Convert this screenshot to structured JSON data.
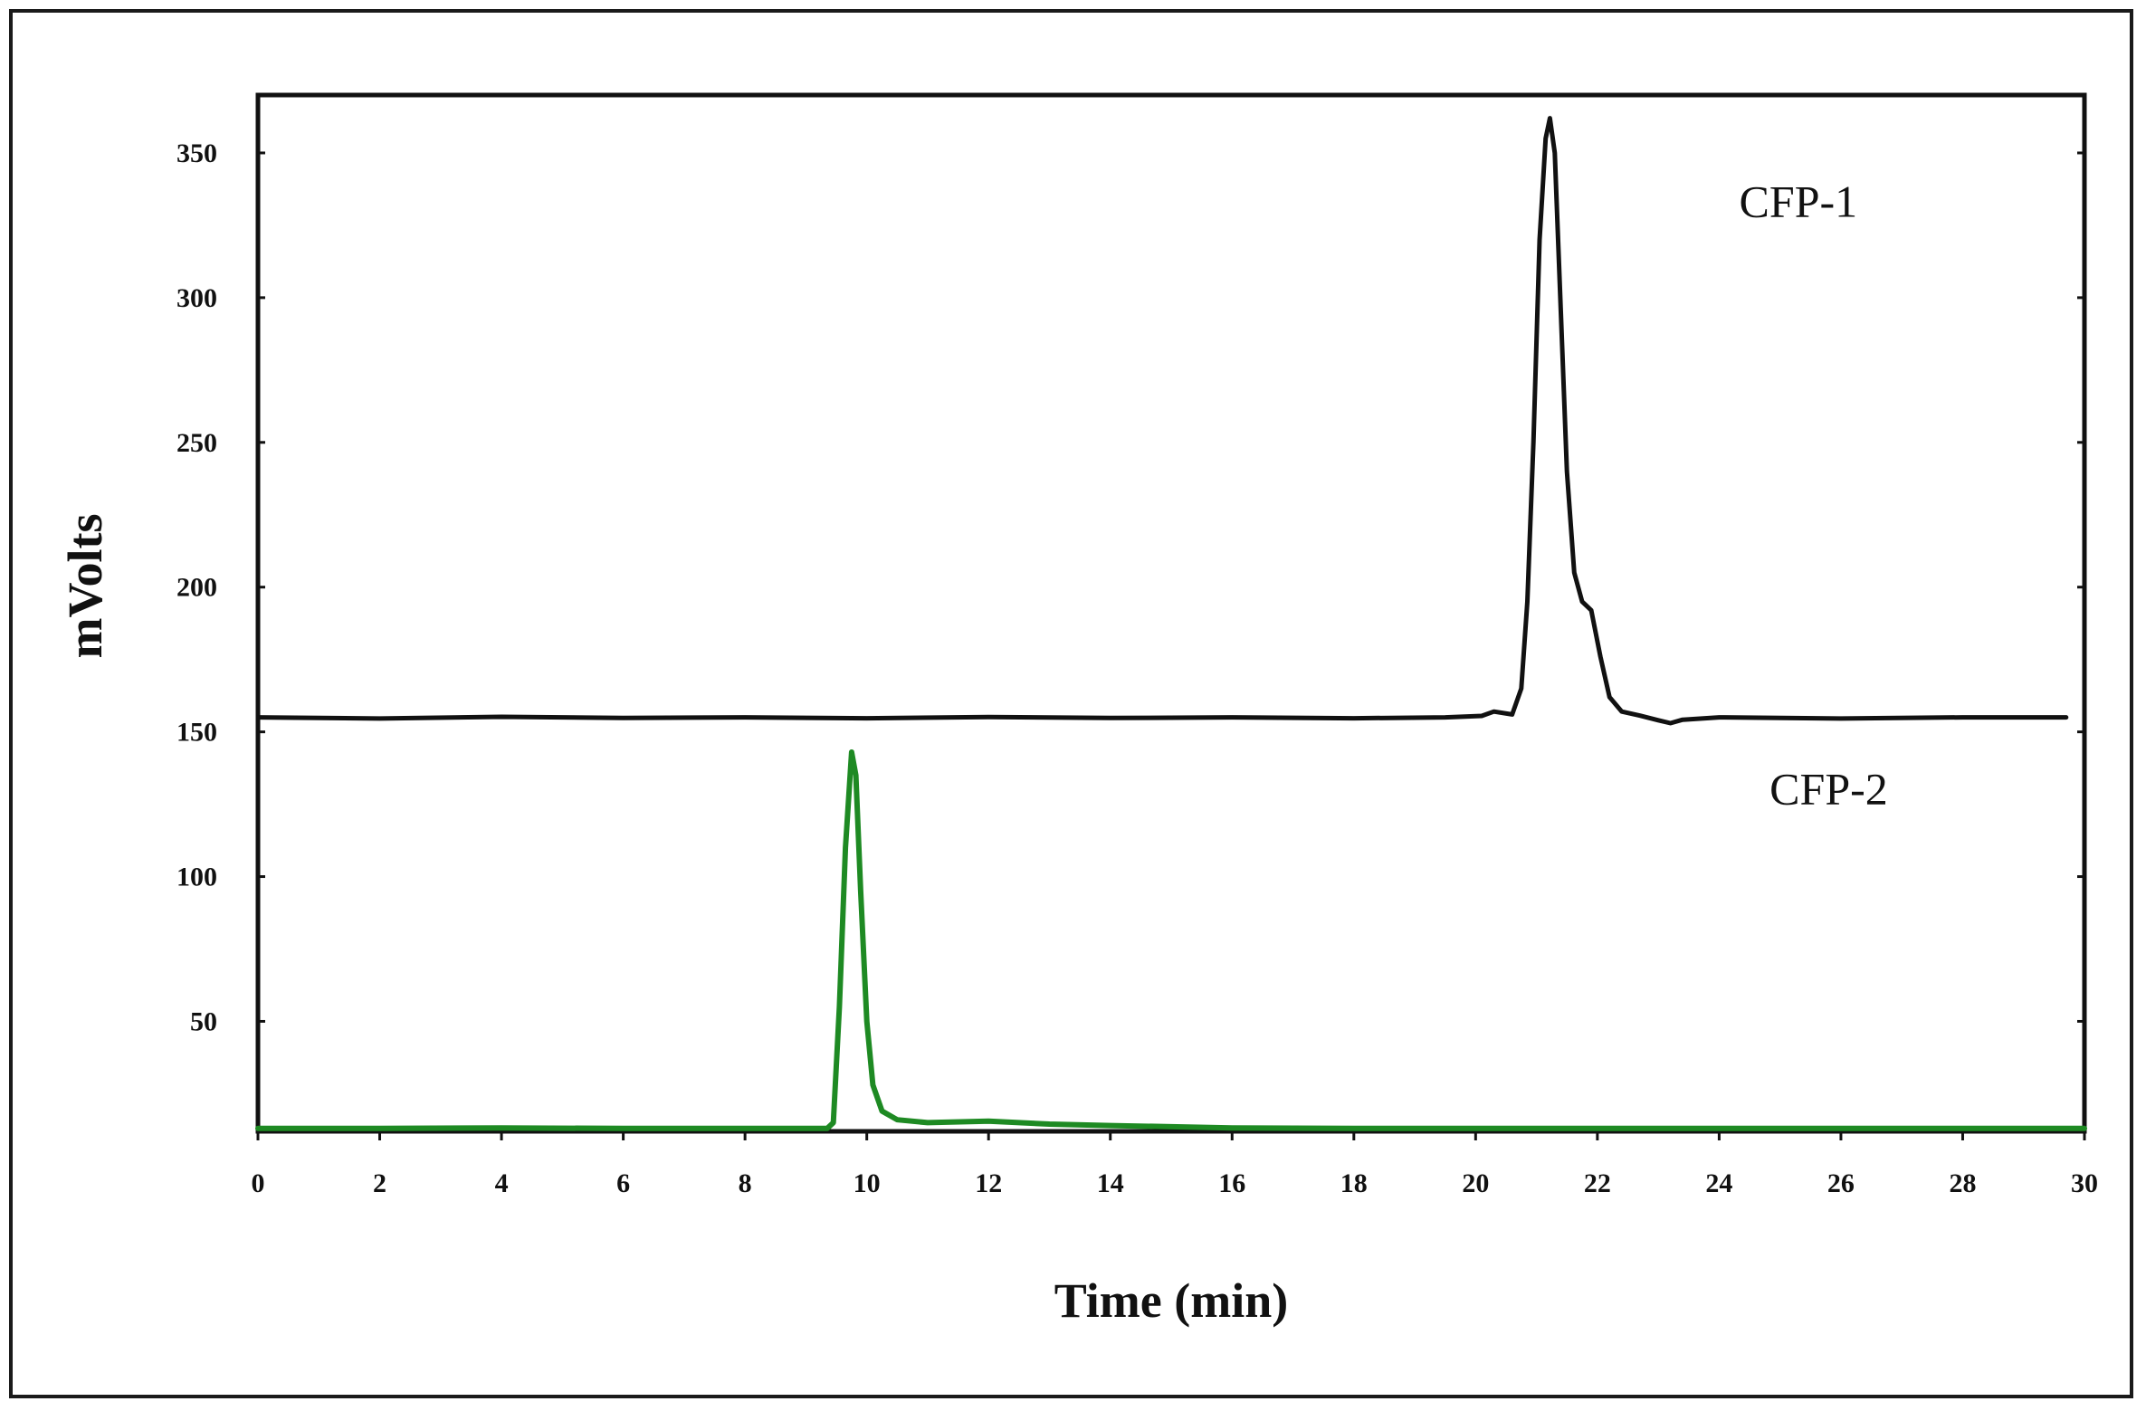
{
  "chart_data": {
    "type": "line",
    "xlabel": "Time (min)",
    "ylabel": "mVolts",
    "xlim": [
      0,
      30
    ],
    "ylim": [
      12,
      370
    ],
    "x_ticks": [
      0,
      2,
      4,
      6,
      8,
      10,
      12,
      14,
      16,
      18,
      20,
      22,
      24,
      26,
      28,
      30
    ],
    "y_ticks": [
      50,
      100,
      150,
      200,
      250,
      300,
      350
    ],
    "grid": false,
    "series": [
      {
        "name": "CFP-1",
        "color": "#111111",
        "label_at": [
          25.3,
          328
        ],
        "points": [
          [
            0,
            155
          ],
          [
            2,
            154.6
          ],
          [
            4,
            155.2
          ],
          [
            6,
            154.8
          ],
          [
            8,
            155
          ],
          [
            10,
            154.7
          ],
          [
            12,
            155.1
          ],
          [
            14,
            154.8
          ],
          [
            16,
            155
          ],
          [
            18,
            154.7
          ],
          [
            19.5,
            155
          ],
          [
            20.1,
            155.5
          ],
          [
            20.3,
            157
          ],
          [
            20.6,
            156
          ],
          [
            20.75,
            165
          ],
          [
            20.85,
            195
          ],
          [
            20.95,
            250
          ],
          [
            21.05,
            320
          ],
          [
            21.15,
            355
          ],
          [
            21.22,
            362
          ],
          [
            21.3,
            350
          ],
          [
            21.4,
            295
          ],
          [
            21.5,
            240
          ],
          [
            21.62,
            205
          ],
          [
            21.75,
            195
          ],
          [
            21.9,
            192
          ],
          [
            22.05,
            176
          ],
          [
            22.2,
            162
          ],
          [
            22.4,
            157
          ],
          [
            22.7,
            155.6
          ],
          [
            23.0,
            154
          ],
          [
            23.2,
            153
          ],
          [
            23.4,
            154.2
          ],
          [
            24,
            155
          ],
          [
            26,
            154.6
          ],
          [
            28,
            155
          ],
          [
            29.7,
            155
          ]
        ]
      },
      {
        "name": "CFP-2",
        "color": "#1e8a23",
        "label_at": [
          25.8,
          125
        ],
        "points": [
          [
            0,
            13
          ],
          [
            2,
            13
          ],
          [
            4,
            13.2
          ],
          [
            6,
            13
          ],
          [
            8,
            13
          ],
          [
            9.35,
            13
          ],
          [
            9.45,
            15
          ],
          [
            9.55,
            55
          ],
          [
            9.65,
            110
          ],
          [
            9.75,
            143
          ],
          [
            9.82,
            135
          ],
          [
            9.9,
            95
          ],
          [
            10.0,
            50
          ],
          [
            10.1,
            28
          ],
          [
            10.25,
            19
          ],
          [
            10.5,
            16
          ],
          [
            11,
            15
          ],
          [
            12,
            15.5
          ],
          [
            13,
            14.5
          ],
          [
            14,
            14
          ],
          [
            16,
            13.2
          ],
          [
            18,
            13
          ],
          [
            20,
            13
          ],
          [
            22,
            13
          ],
          [
            24,
            13
          ],
          [
            26,
            13
          ],
          [
            28,
            13
          ],
          [
            30,
            13
          ]
        ]
      }
    ]
  }
}
